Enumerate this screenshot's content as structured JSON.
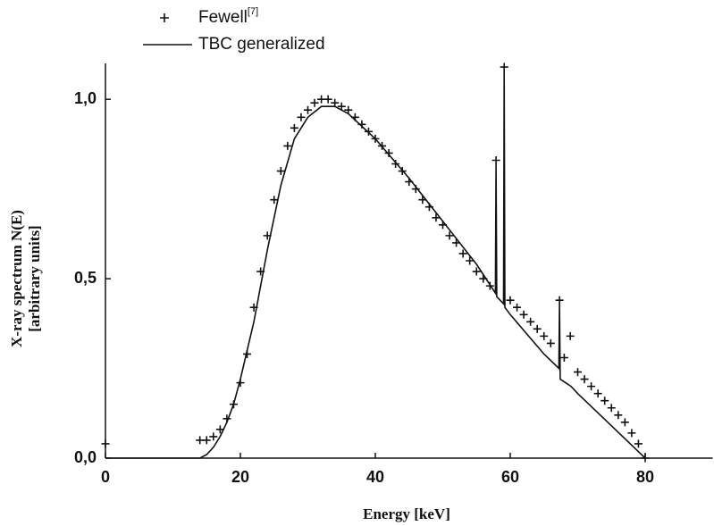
{
  "chart_data": {
    "type": "scatter_line",
    "x_label": "Energy  [keV]",
    "y_label": [
      "X-ray spectrum N(E)",
      "[arbitrary units]"
    ],
    "xlim": [
      0,
      90
    ],
    "ylim": [
      0,
      1.1
    ],
    "xticks": [
      0,
      20,
      40,
      60,
      80
    ],
    "yticks": [
      {
        "value": 0,
        "label": "0,0"
      },
      {
        "value": 0.5,
        "label": "0,5"
      },
      {
        "value": 1,
        "label": "1,0"
      }
    ],
    "legend": "top-left",
    "series": [
      {
        "name": "Fewell",
        "name_note": "[7]",
        "kind": "scatter",
        "color": "#111",
        "x": [
          0,
          14,
          15,
          16,
          17,
          18,
          19,
          20,
          21,
          22,
          23,
          24,
          25,
          26,
          27,
          28,
          29,
          30,
          31,
          32,
          33,
          34,
          35,
          36,
          37,
          38,
          39,
          40,
          41,
          42,
          43,
          44,
          45,
          46,
          47,
          48,
          49,
          50,
          51,
          52,
          53,
          54,
          55,
          56,
          57,
          57.9,
          59.1,
          60,
          61,
          62,
          63,
          64,
          65,
          66,
          67.3,
          68,
          68.9,
          70,
          71,
          72,
          73,
          74,
          75,
          76,
          77,
          78,
          79,
          80
        ],
        "values": [
          0.04,
          0.05,
          0.05,
          0.06,
          0.08,
          0.11,
          0.15,
          0.21,
          0.29,
          0.42,
          0.52,
          0.62,
          0.72,
          0.8,
          0.87,
          0.92,
          0.95,
          0.97,
          0.99,
          1.0,
          1.0,
          0.99,
          0.98,
          0.97,
          0.95,
          0.93,
          0.91,
          0.89,
          0.87,
          0.85,
          0.82,
          0.8,
          0.77,
          0.75,
          0.72,
          0.7,
          0.67,
          0.65,
          0.62,
          0.6,
          0.57,
          0.55,
          0.52,
          0.5,
          0.48,
          0.83,
          1.09,
          0.44,
          0.42,
          0.4,
          0.38,
          0.36,
          0.34,
          0.32,
          0.44,
          0.28,
          0.34,
          0.24,
          0.22,
          0.2,
          0.18,
          0.16,
          0.14,
          0.12,
          0.1,
          0.07,
          0.04,
          0.0
        ]
      },
      {
        "name": "TBC generalized",
        "kind": "line",
        "color": "#111",
        "x": [
          0,
          14,
          15,
          16,
          17,
          18,
          19,
          20,
          22,
          24,
          26,
          28,
          30,
          32,
          34,
          36,
          40,
          45,
          50,
          55,
          57.8,
          57.9,
          58,
          59,
          59.1,
          59.2,
          60,
          65,
          67.2,
          67.3,
          67.4,
          69,
          70,
          75,
          80
        ],
        "values": [
          0,
          0,
          0.01,
          0.03,
          0.06,
          0.1,
          0.15,
          0.22,
          0.38,
          0.58,
          0.76,
          0.89,
          0.95,
          0.98,
          0.98,
          0.96,
          0.89,
          0.78,
          0.66,
          0.54,
          0.46,
          0.82,
          0.45,
          0.43,
          1.08,
          0.42,
          0.4,
          0.29,
          0.25,
          0.43,
          0.22,
          0.2,
          0.18,
          0.09,
          0
        ]
      }
    ]
  }
}
